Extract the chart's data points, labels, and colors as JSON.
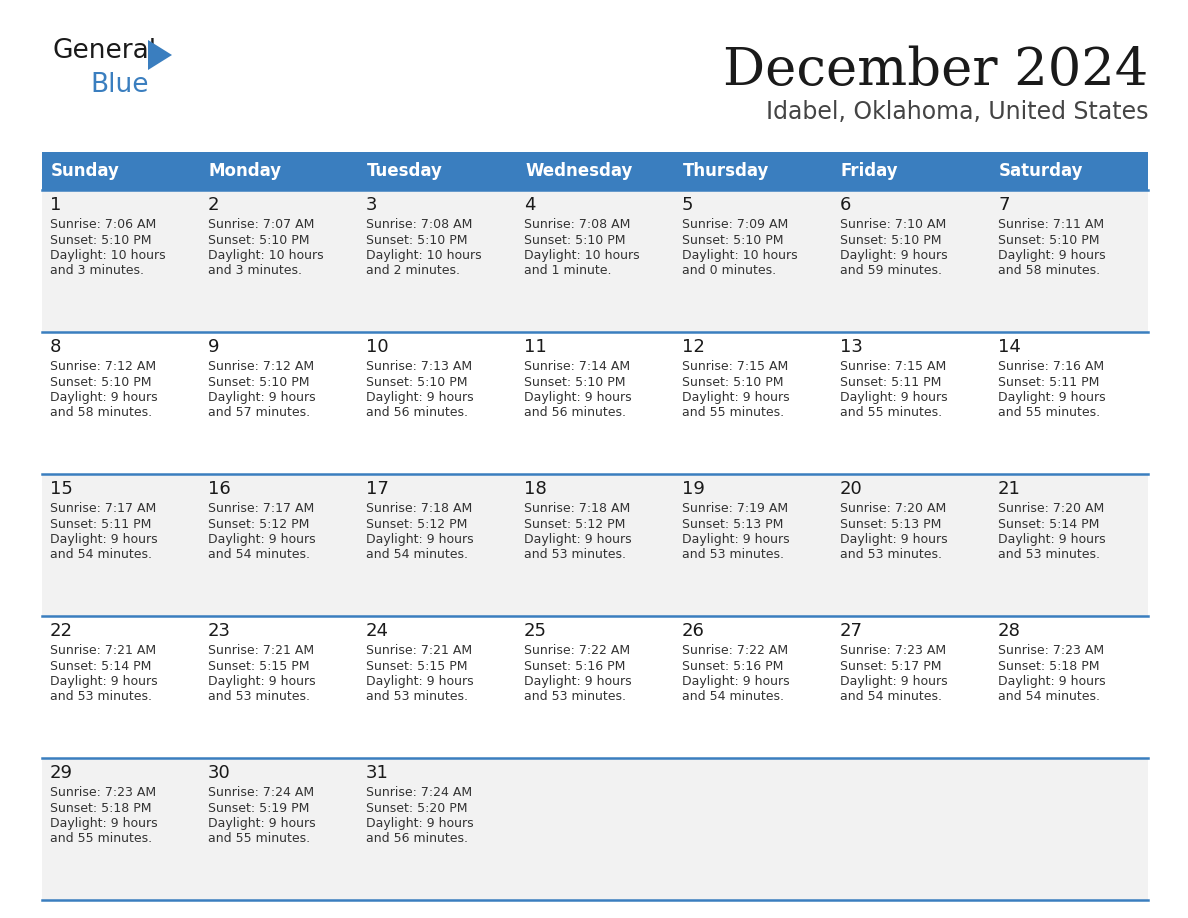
{
  "title": "December 2024",
  "subtitle": "Idabel, Oklahoma, United States",
  "header_bg_color": "#3a7ebf",
  "header_text_color": "#ffffff",
  "day_names": [
    "Sunday",
    "Monday",
    "Tuesday",
    "Wednesday",
    "Thursday",
    "Friday",
    "Saturday"
  ],
  "row_bg_colors": [
    "#f2f2f2",
    "#ffffff",
    "#f2f2f2",
    "#ffffff",
    "#f2f2f2"
  ],
  "separator_color": "#3a7ebf",
  "days": [
    {
      "day": 1,
      "col": 0,
      "row": 0,
      "sunrise": "7:06 AM",
      "sunset": "5:10 PM",
      "daylight_h": "10 hours",
      "daylight_m": "and 3 minutes."
    },
    {
      "day": 2,
      "col": 1,
      "row": 0,
      "sunrise": "7:07 AM",
      "sunset": "5:10 PM",
      "daylight_h": "10 hours",
      "daylight_m": "and 3 minutes."
    },
    {
      "day": 3,
      "col": 2,
      "row": 0,
      "sunrise": "7:08 AM",
      "sunset": "5:10 PM",
      "daylight_h": "10 hours",
      "daylight_m": "and 2 minutes."
    },
    {
      "day": 4,
      "col": 3,
      "row": 0,
      "sunrise": "7:08 AM",
      "sunset": "5:10 PM",
      "daylight_h": "10 hours",
      "daylight_m": "and 1 minute."
    },
    {
      "day": 5,
      "col": 4,
      "row": 0,
      "sunrise": "7:09 AM",
      "sunset": "5:10 PM",
      "daylight_h": "10 hours",
      "daylight_m": "and 0 minutes."
    },
    {
      "day": 6,
      "col": 5,
      "row": 0,
      "sunrise": "7:10 AM",
      "sunset": "5:10 PM",
      "daylight_h": "9 hours",
      "daylight_m": "and 59 minutes."
    },
    {
      "day": 7,
      "col": 6,
      "row": 0,
      "sunrise": "7:11 AM",
      "sunset": "5:10 PM",
      "daylight_h": "9 hours",
      "daylight_m": "and 58 minutes."
    },
    {
      "day": 8,
      "col": 0,
      "row": 1,
      "sunrise": "7:12 AM",
      "sunset": "5:10 PM",
      "daylight_h": "9 hours",
      "daylight_m": "and 58 minutes."
    },
    {
      "day": 9,
      "col": 1,
      "row": 1,
      "sunrise": "7:12 AM",
      "sunset": "5:10 PM",
      "daylight_h": "9 hours",
      "daylight_m": "and 57 minutes."
    },
    {
      "day": 10,
      "col": 2,
      "row": 1,
      "sunrise": "7:13 AM",
      "sunset": "5:10 PM",
      "daylight_h": "9 hours",
      "daylight_m": "and 56 minutes."
    },
    {
      "day": 11,
      "col": 3,
      "row": 1,
      "sunrise": "7:14 AM",
      "sunset": "5:10 PM",
      "daylight_h": "9 hours",
      "daylight_m": "and 56 minutes."
    },
    {
      "day": 12,
      "col": 4,
      "row": 1,
      "sunrise": "7:15 AM",
      "sunset": "5:10 PM",
      "daylight_h": "9 hours",
      "daylight_m": "and 55 minutes."
    },
    {
      "day": 13,
      "col": 5,
      "row": 1,
      "sunrise": "7:15 AM",
      "sunset": "5:11 PM",
      "daylight_h": "9 hours",
      "daylight_m": "and 55 minutes."
    },
    {
      "day": 14,
      "col": 6,
      "row": 1,
      "sunrise": "7:16 AM",
      "sunset": "5:11 PM",
      "daylight_h": "9 hours",
      "daylight_m": "and 55 minutes."
    },
    {
      "day": 15,
      "col": 0,
      "row": 2,
      "sunrise": "7:17 AM",
      "sunset": "5:11 PM",
      "daylight_h": "9 hours",
      "daylight_m": "and 54 minutes."
    },
    {
      "day": 16,
      "col": 1,
      "row": 2,
      "sunrise": "7:17 AM",
      "sunset": "5:12 PM",
      "daylight_h": "9 hours",
      "daylight_m": "and 54 minutes."
    },
    {
      "day": 17,
      "col": 2,
      "row": 2,
      "sunrise": "7:18 AM",
      "sunset": "5:12 PM",
      "daylight_h": "9 hours",
      "daylight_m": "and 54 minutes."
    },
    {
      "day": 18,
      "col": 3,
      "row": 2,
      "sunrise": "7:18 AM",
      "sunset": "5:12 PM",
      "daylight_h": "9 hours",
      "daylight_m": "and 53 minutes."
    },
    {
      "day": 19,
      "col": 4,
      "row": 2,
      "sunrise": "7:19 AM",
      "sunset": "5:13 PM",
      "daylight_h": "9 hours",
      "daylight_m": "and 53 minutes."
    },
    {
      "day": 20,
      "col": 5,
      "row": 2,
      "sunrise": "7:20 AM",
      "sunset": "5:13 PM",
      "daylight_h": "9 hours",
      "daylight_m": "and 53 minutes."
    },
    {
      "day": 21,
      "col": 6,
      "row": 2,
      "sunrise": "7:20 AM",
      "sunset": "5:14 PM",
      "daylight_h": "9 hours",
      "daylight_m": "and 53 minutes."
    },
    {
      "day": 22,
      "col": 0,
      "row": 3,
      "sunrise": "7:21 AM",
      "sunset": "5:14 PM",
      "daylight_h": "9 hours",
      "daylight_m": "and 53 minutes."
    },
    {
      "day": 23,
      "col": 1,
      "row": 3,
      "sunrise": "7:21 AM",
      "sunset": "5:15 PM",
      "daylight_h": "9 hours",
      "daylight_m": "and 53 minutes."
    },
    {
      "day": 24,
      "col": 2,
      "row": 3,
      "sunrise": "7:21 AM",
      "sunset": "5:15 PM",
      "daylight_h": "9 hours",
      "daylight_m": "and 53 minutes."
    },
    {
      "day": 25,
      "col": 3,
      "row": 3,
      "sunrise": "7:22 AM",
      "sunset": "5:16 PM",
      "daylight_h": "9 hours",
      "daylight_m": "and 53 minutes."
    },
    {
      "day": 26,
      "col": 4,
      "row": 3,
      "sunrise": "7:22 AM",
      "sunset": "5:16 PM",
      "daylight_h": "9 hours",
      "daylight_m": "and 54 minutes."
    },
    {
      "day": 27,
      "col": 5,
      "row": 3,
      "sunrise": "7:23 AM",
      "sunset": "5:17 PM",
      "daylight_h": "9 hours",
      "daylight_m": "and 54 minutes."
    },
    {
      "day": 28,
      "col": 6,
      "row": 3,
      "sunrise": "7:23 AM",
      "sunset": "5:18 PM",
      "daylight_h": "9 hours",
      "daylight_m": "and 54 minutes."
    },
    {
      "day": 29,
      "col": 0,
      "row": 4,
      "sunrise": "7:23 AM",
      "sunset": "5:18 PM",
      "daylight_h": "9 hours",
      "daylight_m": "and 55 minutes."
    },
    {
      "day": 30,
      "col": 1,
      "row": 4,
      "sunrise": "7:24 AM",
      "sunset": "5:19 PM",
      "daylight_h": "9 hours",
      "daylight_m": "and 55 minutes."
    },
    {
      "day": 31,
      "col": 2,
      "row": 4,
      "sunrise": "7:24 AM",
      "sunset": "5:20 PM",
      "daylight_h": "9 hours",
      "daylight_m": "and 56 minutes."
    }
  ]
}
